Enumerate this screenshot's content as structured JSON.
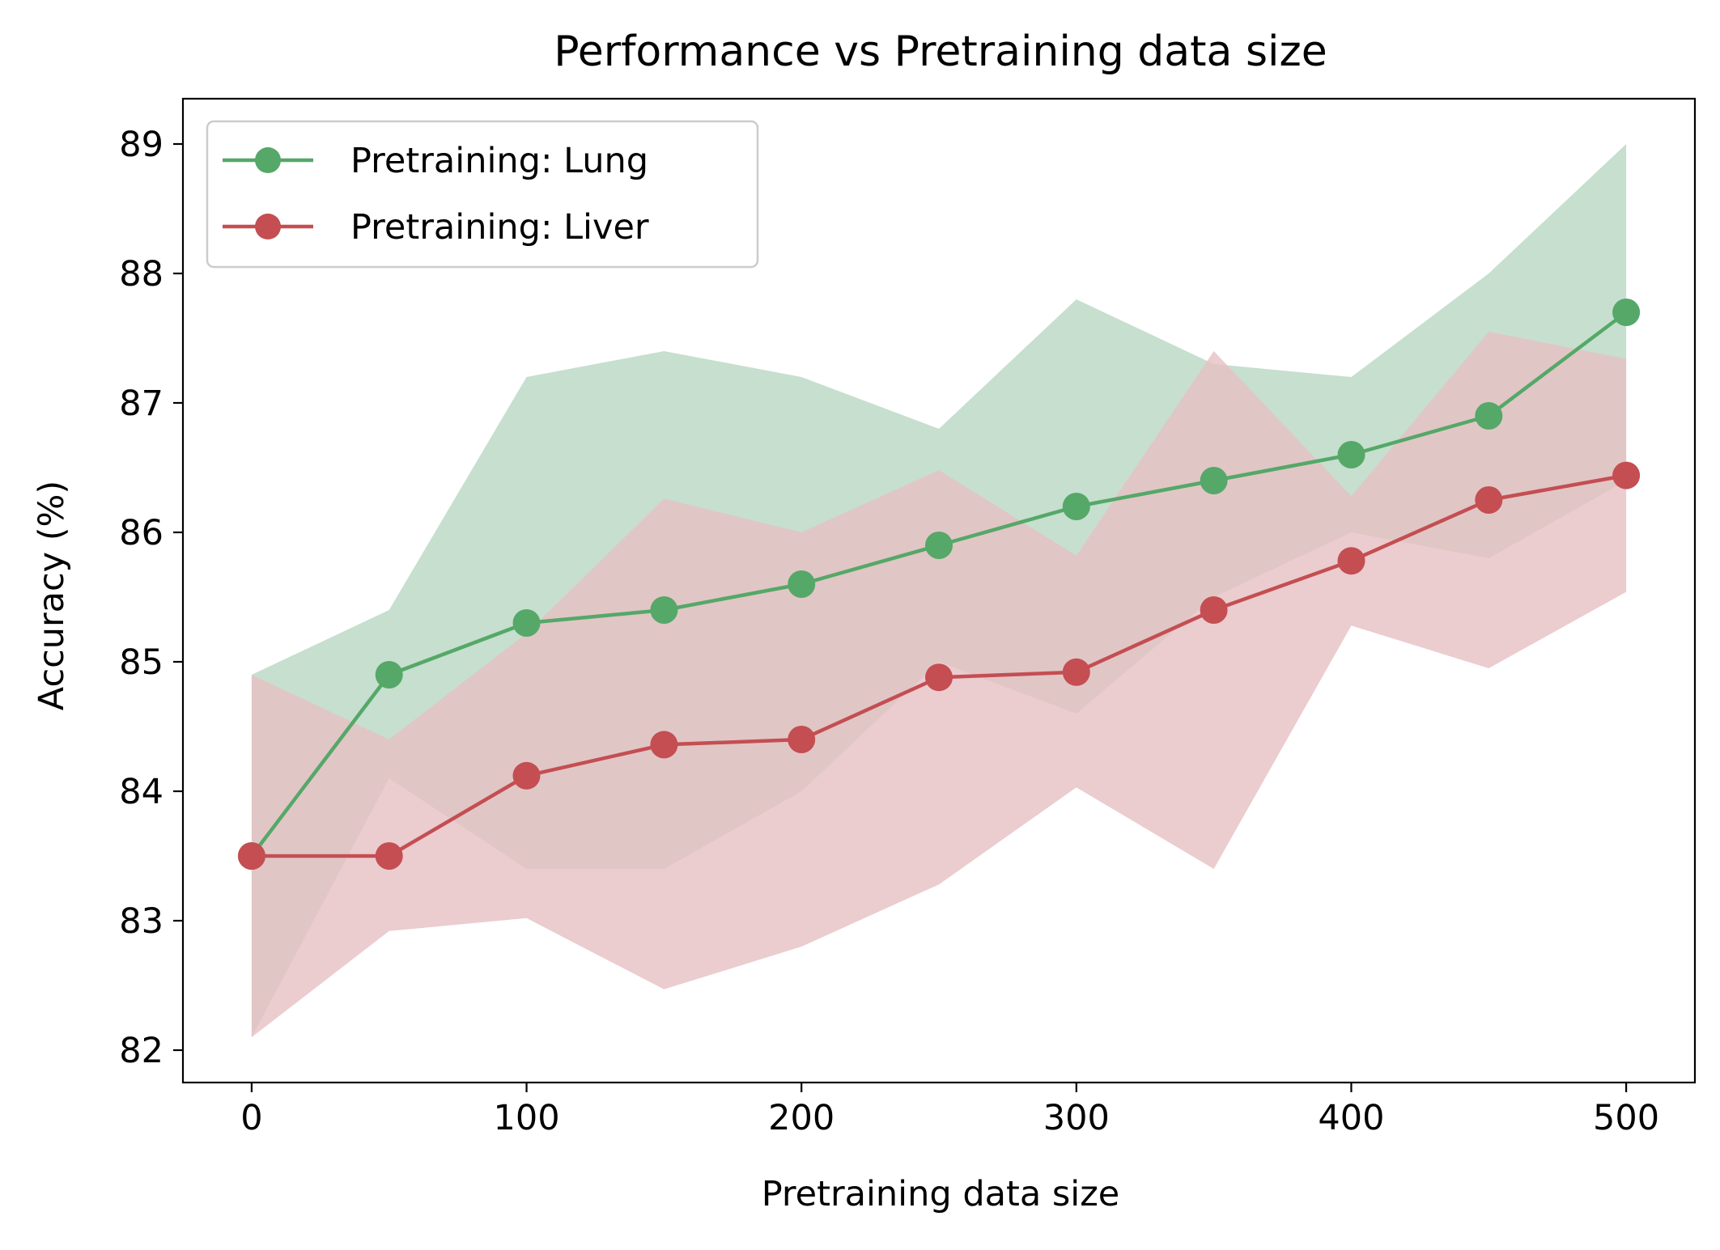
{
  "chart_data": {
    "type": "line",
    "title": "Performance vs Pretraining data size",
    "xlabel": "Pretraining data size",
    "ylabel": "Accuracy (%)",
    "xlim": [
      -25,
      525
    ],
    "ylim": [
      81.75,
      89.35
    ],
    "x_ticks": [
      0,
      100,
      200,
      300,
      400,
      500
    ],
    "x_tick_labels": [
      "0",
      "100",
      "200",
      "300",
      "400",
      "500"
    ],
    "y_ticks": [
      82,
      83,
      84,
      85,
      86,
      87,
      88,
      89
    ],
    "y_tick_labels": [
      "82",
      "83",
      "84",
      "85",
      "86",
      "87",
      "88",
      "89"
    ],
    "grid": false,
    "legend_position": "top-left",
    "x": [
      0,
      50,
      100,
      150,
      200,
      250,
      300,
      350,
      400,
      450,
      500
    ],
    "series": [
      {
        "name": "Pretraining: Lung",
        "color": "#55a868",
        "band_color": "#c6dfce",
        "values": [
          83.5,
          84.9,
          85.3,
          85.4,
          85.6,
          85.9,
          86.2,
          86.4,
          86.6,
          86.9,
          87.7
        ],
        "band_lower": [
          82.1,
          84.1,
          83.4,
          83.4,
          84.0,
          85.0,
          84.6,
          85.5,
          86.0,
          85.8,
          86.4
        ],
        "band_upper": [
          84.9,
          85.4,
          87.2,
          87.4,
          87.2,
          86.8,
          87.8,
          87.3,
          87.2,
          88.0,
          89.0
        ]
      },
      {
        "name": "Pretraining: Liver",
        "color": "#c44e52",
        "band_color": "#e7c1c5",
        "values": [
          83.5,
          83.5,
          84.12,
          84.36,
          84.4,
          84.88,
          84.92,
          85.4,
          85.78,
          86.25,
          86.44
        ],
        "band_lower": [
          82.1,
          82.92,
          83.02,
          82.47,
          82.8,
          83.28,
          84.03,
          83.4,
          85.28,
          84.95,
          85.54
        ],
        "band_upper": [
          84.9,
          84.4,
          85.22,
          86.26,
          86.0,
          86.48,
          85.82,
          87.4,
          86.28,
          87.55,
          87.34
        ]
      }
    ]
  }
}
